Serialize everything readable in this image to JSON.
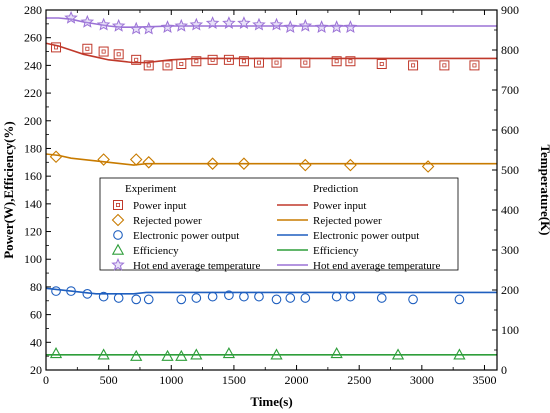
{
  "chart_data": {
    "type": "line",
    "title": "",
    "xlabel": "Time(s)",
    "ylabel_left": "Power(W),Efficiency(%)",
    "ylabel_right": "Temperature(K)",
    "xlim": [
      0,
      3600
    ],
    "ylim_left": [
      20,
      280
    ],
    "ylim_right": [
      0,
      900
    ],
    "xticks": [
      0,
      500,
      1000,
      1500,
      2000,
      2500,
      3000,
      3500
    ],
    "yticks_left": [
      20,
      40,
      60,
      80,
      100,
      120,
      140,
      160,
      180,
      200,
      220,
      240,
      260,
      280
    ],
    "yticks_right": [
      0,
      100,
      200,
      300,
      400,
      500,
      600,
      700,
      800,
      900
    ],
    "grid": false,
    "legend_position": "center",
    "legend": {
      "experiment_header": "Experiment",
      "prediction_header": "Prediction"
    },
    "series": [
      {
        "name": "Power input",
        "axis": "left",
        "color": "#c0392b",
        "marker": "square",
        "experiment": {
          "x": [
            80,
            330,
            460,
            580,
            720,
            820,
            970,
            1080,
            1200,
            1330,
            1460,
            1580,
            1700,
            1840,
            2070,
            2320,
            2430,
            2680,
            2930,
            3180,
            3420
          ],
          "y": [
            253,
            252,
            250,
            248,
            244,
            240,
            240,
            241,
            243,
            244,
            244,
            243,
            242,
            242,
            242,
            243,
            243,
            241,
            240,
            240,
            240
          ]
        },
        "prediction": {
          "x": [
            0,
            100,
            200,
            300,
            400,
            500,
            600,
            700,
            800,
            900,
            1000,
            1200,
            1400,
            1600,
            1800,
            2000,
            2500,
            3000,
            3600
          ],
          "y": [
            256,
            254,
            251,
            248,
            246,
            244,
            243,
            242,
            242,
            243,
            244,
            245,
            245,
            245,
            245,
            245,
            245,
            245,
            245
          ]
        }
      },
      {
        "name": "Rejected power",
        "axis": "left",
        "color": "#c87b00",
        "marker": "diamond",
        "experiment": {
          "x": [
            80,
            460,
            720,
            820,
            1330,
            1580,
            2070,
            2430,
            3050
          ],
          "y": [
            174,
            172,
            172,
            170,
            169,
            169,
            168,
            168,
            167
          ]
        },
        "prediction": {
          "x": [
            0,
            100,
            200,
            300,
            400,
            500,
            600,
            700,
            800,
            1000,
            1500,
            2000,
            3000,
            3600
          ],
          "y": [
            176,
            175,
            173,
            172,
            171,
            170,
            169,
            168,
            169,
            169,
            169,
            169,
            169,
            169
          ]
        }
      },
      {
        "name": "Electronic power output",
        "axis": "left",
        "color": "#1f5fbf",
        "marker": "circle",
        "experiment": {
          "x": [
            80,
            200,
            330,
            460,
            580,
            720,
            820,
            1080,
            1200,
            1330,
            1460,
            1580,
            1700,
            1840,
            1950,
            2070,
            2320,
            2430,
            2680,
            2930,
            3300
          ],
          "y": [
            77,
            77,
            75,
            73,
            72,
            71,
            71,
            71,
            72,
            73,
            74,
            73,
            73,
            71,
            72,
            72,
            73,
            73,
            72,
            71,
            71
          ]
        },
        "prediction": {
          "x": [
            0,
            100,
            200,
            300,
            400,
            500,
            600,
            700,
            800,
            1000,
            1500,
            2000,
            3000,
            3600
          ],
          "y": [
            79,
            78,
            77,
            76,
            75,
            75,
            75,
            75,
            76,
            76,
            76,
            76,
            76,
            76
          ]
        }
      },
      {
        "name": "Efficiency",
        "axis": "left",
        "color": "#2e9e3a",
        "marker": "triangle",
        "experiment": {
          "x": [
            80,
            460,
            720,
            970,
            1080,
            1200,
            1460,
            1840,
            2320,
            2810,
            3300
          ],
          "y": [
            32,
            31,
            30,
            30,
            30,
            31,
            32,
            31,
            32,
            31,
            31
          ]
        },
        "prediction": {
          "x": [
            0,
            500,
            1000,
            1500,
            2000,
            3000,
            3600
          ],
          "y": [
            31,
            31,
            31,
            31,
            31,
            31,
            31
          ]
        }
      },
      {
        "name": "Hot end average temperature",
        "axis": "right",
        "color": "#9b72d6",
        "marker": "star",
        "experiment": {
          "x": [
            200,
            330,
            460,
            580,
            720,
            820,
            970,
            1080,
            1200,
            1330,
            1460,
            1580,
            1700,
            1840,
            1950,
            2070,
            2200,
            2320,
            2430
          ],
          "y": [
            880,
            870,
            863,
            860,
            853,
            853,
            857,
            860,
            863,
            867,
            867,
            867,
            863,
            863,
            857,
            860,
            857,
            857,
            857
          ]
        },
        "prediction": {
          "x": [
            0,
            100,
            200,
            300,
            400,
            500,
            600,
            700,
            800,
            1000,
            1500,
            2000,
            2500,
            3000,
            3600
          ],
          "y": [
            880,
            880,
            877,
            870,
            865,
            860,
            857,
            857,
            858,
            860,
            860,
            860,
            860,
            860,
            860
          ]
        }
      }
    ]
  }
}
